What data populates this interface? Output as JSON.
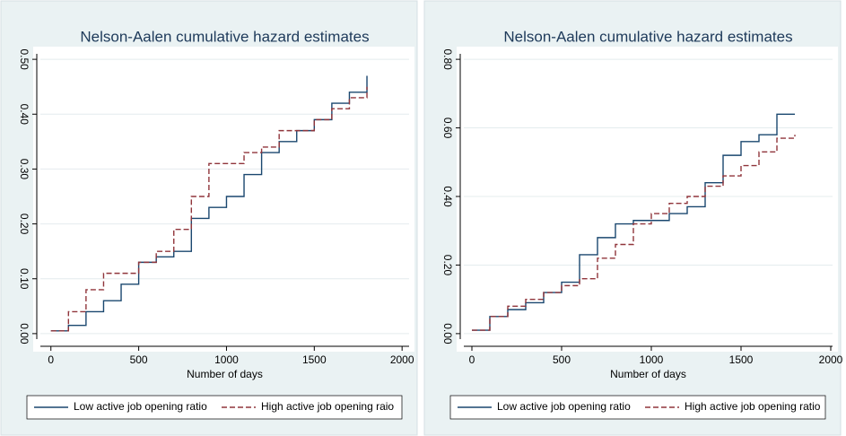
{
  "chart_data": [
    {
      "type": "line",
      "title": "Nelson-Aalen cumulative hazard estimates",
      "xlabel": "Number of days",
      "x": [
        0,
        100,
        200,
        300,
        400,
        500,
        600,
        700,
        800,
        900,
        1000,
        1100,
        1200,
        1300,
        1400,
        1500,
        1600,
        1700,
        1800
      ],
      "series": [
        {
          "name": "Low active job opening ratio",
          "color": "#1a476f",
          "dash": "solid",
          "values": [
            0.005,
            0.015,
            0.04,
            0.06,
            0.09,
            0.13,
            0.14,
            0.15,
            0.21,
            0.23,
            0.25,
            0.29,
            0.33,
            0.35,
            0.37,
            0.39,
            0.42,
            0.44,
            0.47
          ]
        },
        {
          "name": "High active job opening raio",
          "color": "#90353b",
          "dash": "dashed",
          "values": [
            0.005,
            0.04,
            0.08,
            0.11,
            0.11,
            0.13,
            0.15,
            0.19,
            0.25,
            0.31,
            0.31,
            0.33,
            0.34,
            0.37,
            0.37,
            0.39,
            0.41,
            0.43,
            0.45
          ]
        }
      ],
      "xlim": [
        -60,
        2040
      ],
      "ylim": [
        -0.01,
        0.51
      ],
      "xticks": [
        0,
        500,
        1000,
        1500,
        2000
      ],
      "yticks": [
        {
          "value": 0,
          "label": "0.00"
        },
        {
          "value": 0.1,
          "label": "0.10"
        },
        {
          "value": 0.2,
          "label": "0.20"
        },
        {
          "value": 0.3,
          "label": "0.30"
        },
        {
          "value": 0.4,
          "label": "0.40"
        },
        {
          "value": 0.5,
          "label": "0.50"
        }
      ],
      "grid": true,
      "step": true,
      "legend": "bottom"
    },
    {
      "type": "line",
      "title": "Nelson-Aalen cumulative hazard estimates",
      "xlabel": "Number of days",
      "x": [
        0,
        100,
        200,
        300,
        400,
        500,
        600,
        700,
        800,
        900,
        1000,
        1100,
        1200,
        1300,
        1400,
        1500,
        1600,
        1700,
        1800
      ],
      "series": [
        {
          "name": "Low active job opening ratio",
          "color": "#1a476f",
          "dash": "solid",
          "values": [
            0.01,
            0.05,
            0.07,
            0.09,
            0.12,
            0.15,
            0.23,
            0.28,
            0.32,
            0.33,
            0.33,
            0.35,
            0.37,
            0.44,
            0.52,
            0.56,
            0.58,
            0.64,
            0.64
          ]
        },
        {
          "name": "High active job opening ratio",
          "color": "#90353b",
          "dash": "dashed",
          "values": [
            0.01,
            0.05,
            0.08,
            0.1,
            0.12,
            0.14,
            0.16,
            0.22,
            0.26,
            0.32,
            0.35,
            0.38,
            0.4,
            0.43,
            0.46,
            0.49,
            0.53,
            0.57,
            0.58
          ]
        }
      ],
      "xlim": [
        -45,
        2010
      ],
      "ylim": [
        -0.016,
        0.816
      ],
      "xticks": [
        0,
        500,
        1000,
        1500,
        2000
      ],
      "yticks": [
        {
          "value": 0,
          "label": "0.00"
        },
        {
          "value": 0.2,
          "label": "0.20"
        },
        {
          "value": 0.4,
          "label": "0.40"
        },
        {
          "value": 0.6,
          "label": "0.60"
        },
        {
          "value": 0.8,
          "label": "0.80"
        }
      ],
      "grid": true,
      "step": true,
      "legend": "bottom"
    }
  ]
}
